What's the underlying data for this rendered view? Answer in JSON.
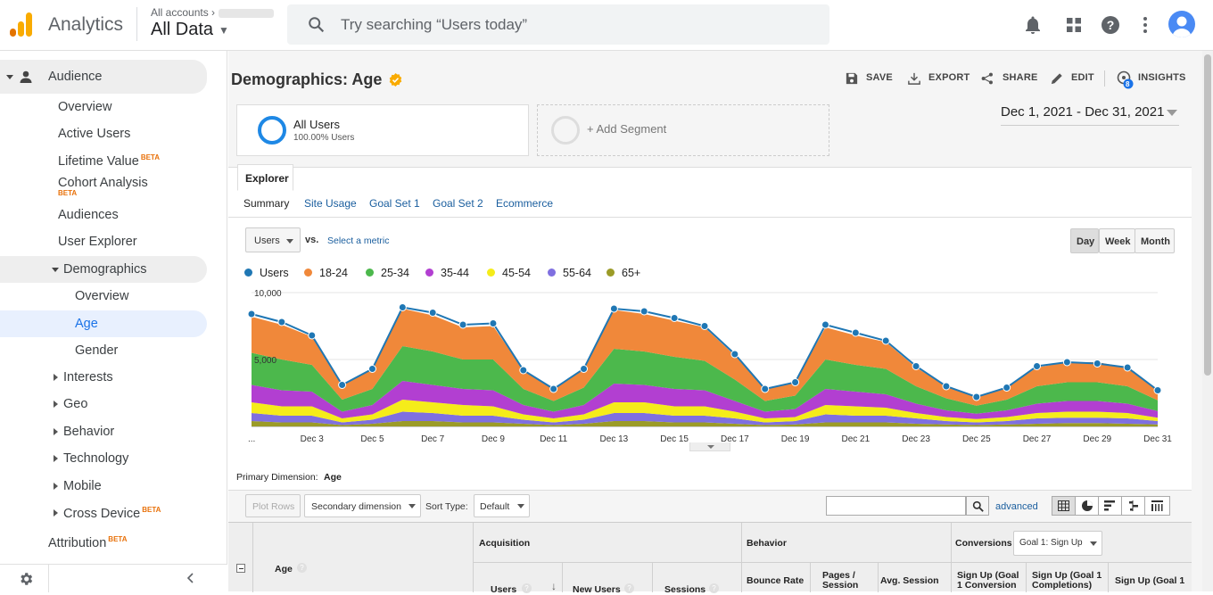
{
  "header": {
    "app_name": "Analytics",
    "account_crumb": "All accounts",
    "view_name": "All Data",
    "search_placeholder": "Try searching “Users today”",
    "icons": [
      "bell-icon",
      "apps-grid-icon",
      "help-icon",
      "more-vert-icon",
      "account-avatar"
    ]
  },
  "sidebar": {
    "audience": "Audience",
    "items": [
      "Overview",
      "Active Users",
      "Lifetime Value",
      "Cohort Analysis",
      "Audiences",
      "User Explorer"
    ],
    "beta": "BETA",
    "demographics": "Demographics",
    "demographics_items": [
      "Overview",
      "Age",
      "Gender"
    ],
    "collapsed": [
      "Interests",
      "Geo",
      "Behavior",
      "Technology",
      "Mobile",
      "Cross Device"
    ],
    "attribution": "Attribution"
  },
  "report": {
    "title": "Demographics: Age",
    "actions": {
      "save": "SAVE",
      "export": "EXPORT",
      "share": "SHARE",
      "edit": "EDIT",
      "insights": "INSIGHTS",
      "insights_badge": "8"
    },
    "segments": {
      "all_users": "All Users",
      "all_users_pct": "100.00% Users",
      "add_segment": "+ Add Segment"
    },
    "date_range": "Dec 1, 2021 - Dec 31, 2021",
    "explorer_tab": "Explorer",
    "subtabs": [
      "Summary",
      "Site Usage",
      "Goal Set 1",
      "Goal Set 2",
      "Ecommerce"
    ],
    "metric_select": "Users",
    "vs": "vs.",
    "select_metric": "Select a metric",
    "granularity": [
      "Day",
      "Week",
      "Month"
    ]
  },
  "chart_data": {
    "type": "area",
    "x": [
      "Dec 1",
      "Dec 2",
      "Dec 3",
      "Dec 4",
      "Dec 5",
      "Dec 6",
      "Dec 7",
      "Dec 8",
      "Dec 9",
      "Dec 10",
      "Dec 11",
      "Dec 12",
      "Dec 13",
      "Dec 14",
      "Dec 15",
      "Dec 16",
      "Dec 17",
      "Dec 18",
      "Dec 19",
      "Dec 20",
      "Dec 21",
      "Dec 22",
      "Dec 23",
      "Dec 24",
      "Dec 25",
      "Dec 26",
      "Dec 27",
      "Dec 28",
      "Dec 29",
      "Dec 30",
      "Dec 31"
    ],
    "tick_labels": [
      "...",
      "Dec 3",
      "Dec 5",
      "Dec 7",
      "Dec 9",
      "Dec 11",
      "Dec 13",
      "Dec 15",
      "Dec 17",
      "Dec 19",
      "Dec 21",
      "Dec 23",
      "Dec 25",
      "Dec 27",
      "Dec 29",
      "Dec 31"
    ],
    "y_ticks": [
      "10,000",
      "5,000"
    ],
    "ylim": [
      0,
      10000
    ],
    "grid": true,
    "legend_position": "top-left",
    "series": [
      {
        "name": "Users",
        "color": "#1f77b4",
        "values": [
          8400,
          7800,
          6800,
          3100,
          4300,
          8900,
          8500,
          7600,
          7700,
          4200,
          2800,
          4300,
          8800,
          8600,
          8100,
          7500,
          5400,
          2800,
          3300,
          7600,
          7000,
          6400,
          4500,
          3000,
          2200,
          2900,
          4500,
          4800,
          4700,
          4400,
          2700
        ]
      },
      {
        "name": "18-24",
        "color": "#f0883a",
        "values": [
          2700,
          2600,
          2100,
          1100,
          1500,
          2800,
          2700,
          2400,
          2500,
          1400,
          900,
          1400,
          2900,
          2800,
          2700,
          2500,
          1800,
          900,
          1000,
          2400,
          2200,
          2000,
          1400,
          900,
          600,
          900,
          1400,
          1500,
          1500,
          1400,
          800
        ]
      },
      {
        "name": "25-34",
        "color": "#4cb84c",
        "values": [
          2400,
          2300,
          2000,
          900,
          1200,
          2600,
          2500,
          2200,
          2300,
          1200,
          800,
          1300,
          2600,
          2500,
          2400,
          2200,
          1600,
          800,
          1000,
          2200,
          2000,
          1900,
          1300,
          900,
          600,
          800,
          1300,
          1400,
          1400,
          1300,
          800
        ]
      },
      {
        "name": "35-44",
        "color": "#b23fd1",
        "values": [
          1300,
          1200,
          1100,
          500,
          700,
          1400,
          1300,
          1200,
          1200,
          700,
          500,
          700,
          1400,
          1300,
          1300,
          1200,
          800,
          500,
          600,
          1200,
          1100,
          1000,
          700,
          500,
          400,
          500,
          700,
          800,
          800,
          700,
          500
        ]
      },
      {
        "name": "45-54",
        "color": "#f5ec1a",
        "values": [
          800,
          700,
          700,
          300,
          400,
          900,
          800,
          800,
          700,
          400,
          300,
          400,
          800,
          800,
          700,
          700,
          500,
          300,
          300,
          700,
          700,
          600,
          400,
          300,
          250,
          300,
          400,
          450,
          450,
          400,
          250
        ]
      },
      {
        "name": "55-64",
        "color": "#7f6fe0",
        "values": [
          600,
          500,
          500,
          200,
          300,
          700,
          600,
          500,
          500,
          300,
          200,
          300,
          600,
          600,
          500,
          500,
          400,
          200,
          250,
          600,
          500,
          500,
          400,
          250,
          200,
          250,
          400,
          400,
          400,
          400,
          250
        ]
      },
      {
        "name": "65+",
        "color": "#9b9b27",
        "values": [
          400,
          300,
          300,
          100,
          200,
          400,
          400,
          300,
          300,
          200,
          100,
          200,
          400,
          400,
          300,
          300,
          200,
          100,
          150,
          300,
          300,
          300,
          200,
          150,
          100,
          150,
          200,
          250,
          250,
          200,
          150
        ]
      }
    ]
  },
  "table": {
    "primary_dimension_label": "Primary Dimension:",
    "primary_dimension_value": "Age",
    "plot_rows": "Plot Rows",
    "secondary_dimension": "Secondary dimension",
    "sort_type_label": "Sort Type:",
    "sort_type_value": "Default",
    "advanced": "advanced",
    "col_age": "Age",
    "group_acquisition": "Acquisition",
    "group_behavior": "Behavior",
    "group_conversions": "Conversions",
    "goal_select": "Goal 1: Sign Up",
    "columns": [
      "Users",
      "New Users",
      "Sessions",
      "Bounce Rate",
      "Pages / Session",
      "Avg. Session",
      "Sign Up (Goal 1 Conversion",
      "Sign Up (Goal 1 Completions)",
      "Sign Up (Goal 1"
    ]
  }
}
